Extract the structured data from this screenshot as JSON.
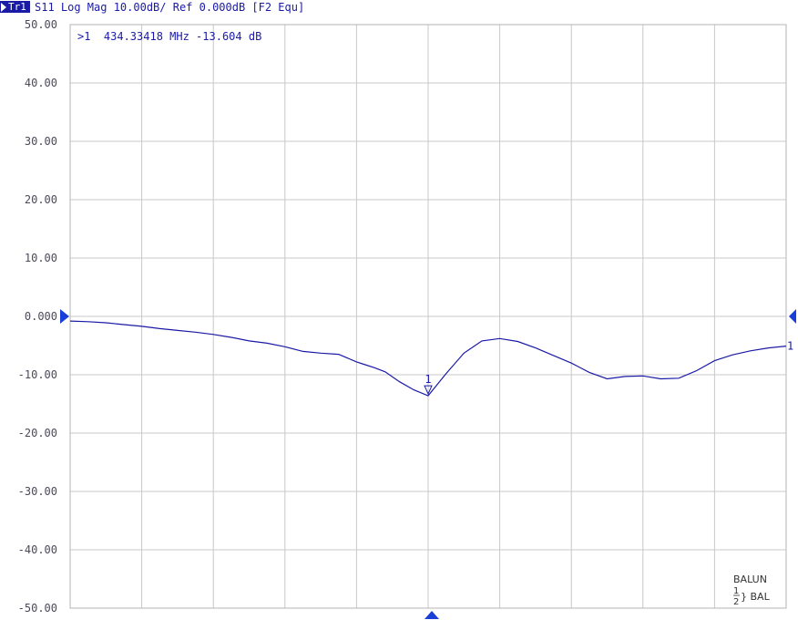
{
  "header": {
    "trace": "Tr1",
    "text": "S11 Log Mag 10.00dB/ Ref 0.000dB [F2 Equ]"
  },
  "marker_readout": ">1  434.33418 MHz -13.604 dB",
  "balun": {
    "title": "BALUN",
    "num1": "1",
    "num2": "2",
    "label": "} BAL"
  },
  "colors": {
    "trace": "#1a1aa6",
    "grid": "#c8c8c8",
    "text": "#1a1aa6",
    "background": "#ffffff"
  },
  "chart_data": {
    "type": "line",
    "xlabel": "",
    "ylabel": "",
    "ylim": [
      -50,
      50
    ],
    "y_ticks": [
      "50.00",
      "40.00",
      "30.00",
      "20.00",
      "10.00",
      "0.000",
      "-10.00",
      "-20.00",
      "-30.00",
      "-40.00",
      "-50.00"
    ],
    "x_divisions": 10,
    "grid": true,
    "reference_level": 0,
    "series": [
      {
        "x_div": [
          0,
          0.25,
          0.5,
          0.75,
          1.0,
          1.25,
          1.5,
          1.75,
          2.0,
          2.25,
          2.5,
          2.75,
          3.0,
          3.25,
          3.5,
          3.75,
          4.0,
          4.1,
          4.25,
          4.4,
          4.6,
          4.8,
          5.0,
          5.25,
          5.5,
          5.75,
          6.0,
          6.25,
          6.5,
          6.75,
          7.0,
          7.25,
          7.5,
          7.75,
          8.0,
          8.25,
          8.5,
          8.75,
          9.0,
          9.25,
          9.5,
          9.75,
          10.0
        ],
        "y": [
          -0.8,
          -0.9,
          -1.1,
          -1.4,
          -1.7,
          -2.1,
          -2.4,
          -2.7,
          -3.1,
          -3.6,
          -4.2,
          -4.6,
          -5.2,
          -6.0,
          -6.3,
          -6.5,
          -7.8,
          -8.2,
          -8.8,
          -9.5,
          -11.2,
          -12.6,
          -13.6,
          -9.8,
          -6.3,
          -4.2,
          -3.8,
          -4.3,
          -5.4,
          -6.7,
          -8.0,
          -9.6,
          -10.7,
          -10.3,
          -10.2,
          -10.7,
          -10.6,
          -9.3,
          -7.6,
          -6.6,
          -5.9,
          -5.4,
          -5.1
        ]
      }
    ],
    "marker": {
      "id": "1",
      "x_div": 5.0,
      "y": -13.604
    },
    "end_label": "1"
  }
}
